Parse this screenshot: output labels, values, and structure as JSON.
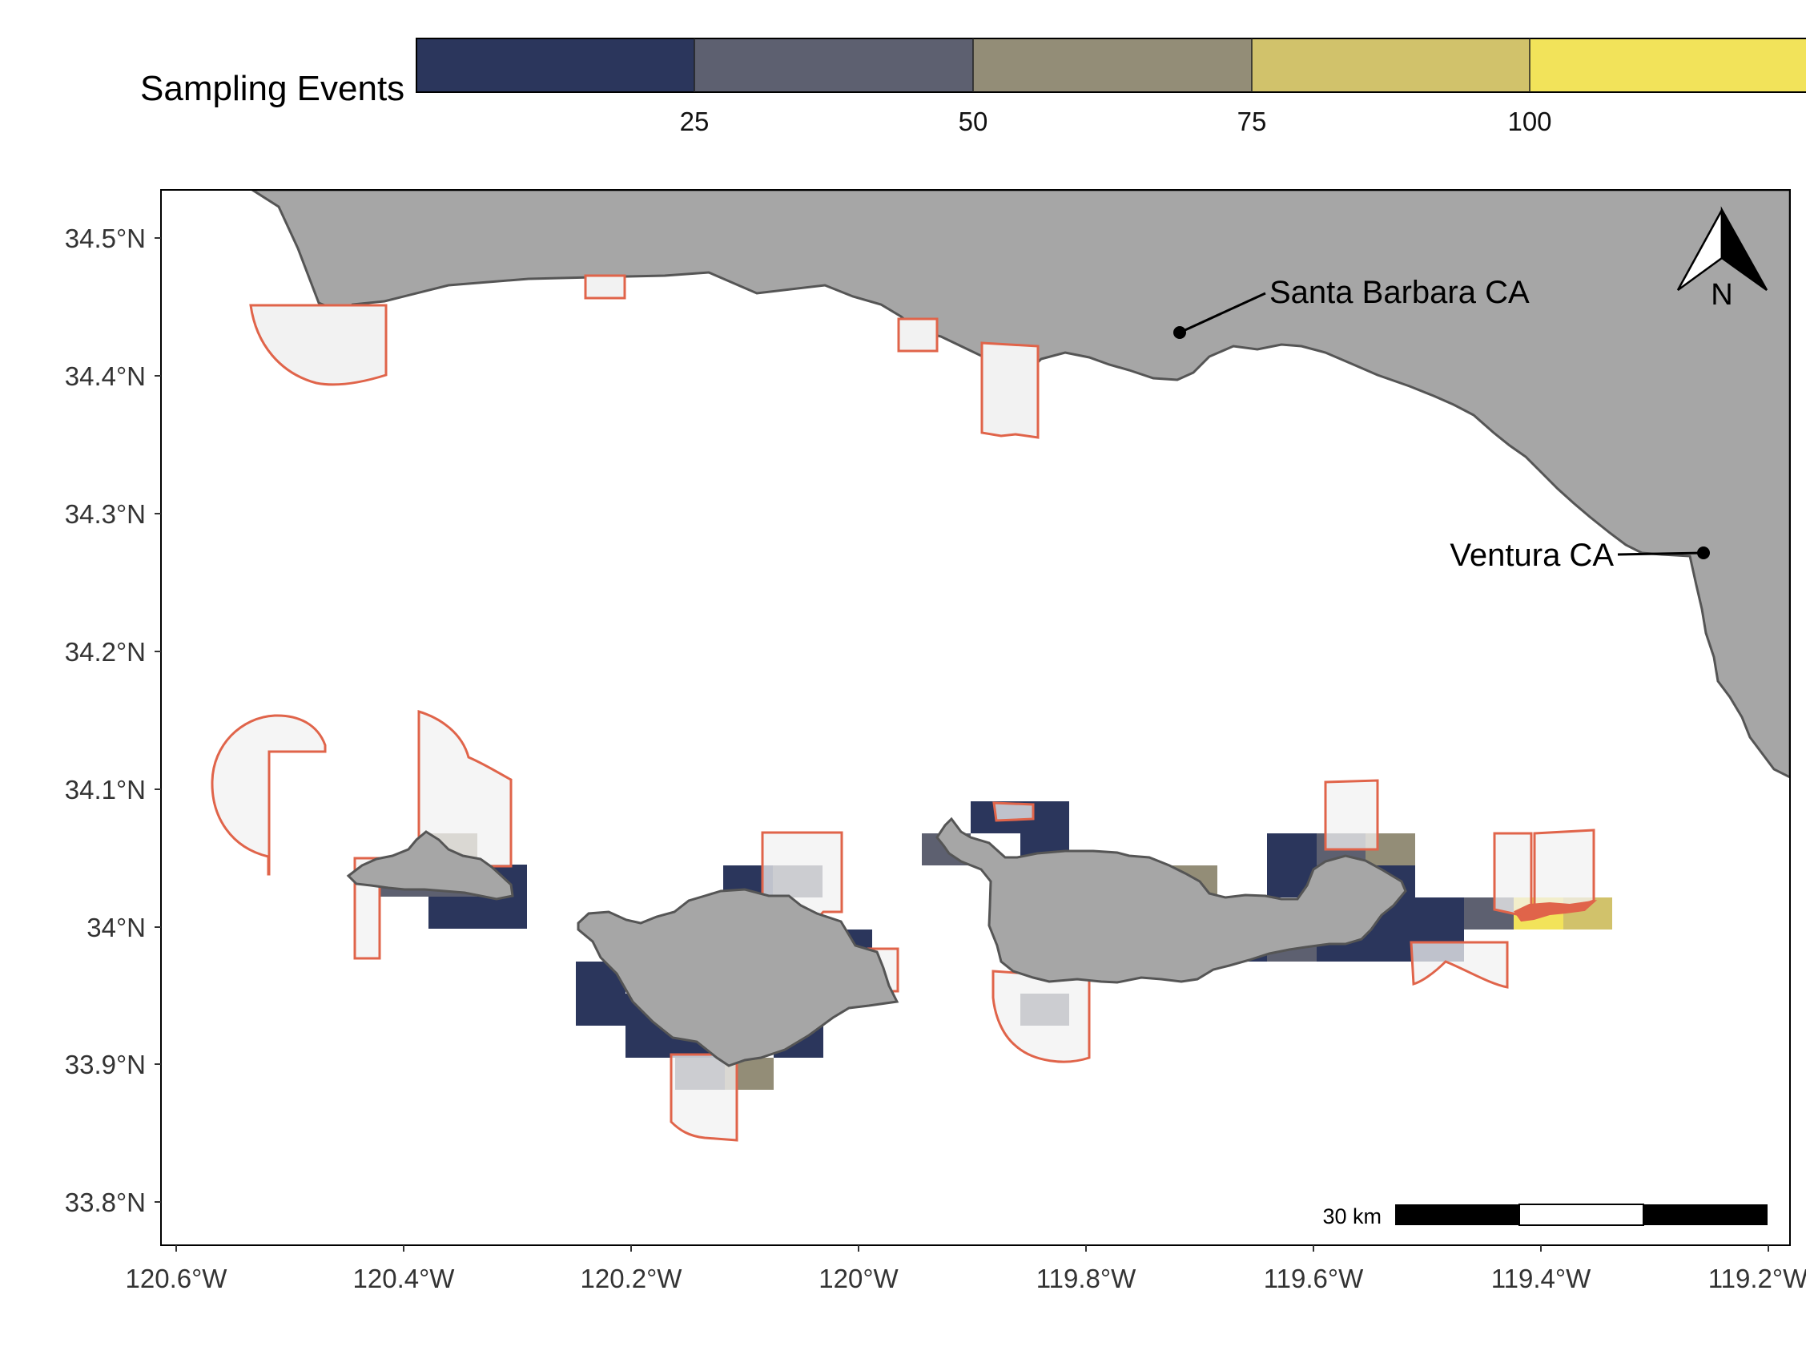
{
  "legend": {
    "title": "Sampling Events",
    "colors": [
      "#2b365c",
      "#5d6070",
      "#938d77",
      "#d1c26b",
      "#f2e35a"
    ],
    "ticks": [
      "25",
      "50",
      "75",
      "100"
    ]
  },
  "axes": {
    "lat_labels": [
      "34.5°N",
      "34.4°N",
      "34.3°N",
      "34.2°N",
      "34.1°N",
      "34°N",
      "33.9°N",
      "33.8°N"
    ],
    "lon_labels": [
      "120.6°W",
      "120.4°W",
      "120.2°W",
      "120°W",
      "119.8°W",
      "119.6°W",
      "119.4°W",
      "119.2°W"
    ]
  },
  "places": {
    "santa_barbara": "Santa Barbara CA",
    "ventura": "Ventura CA"
  },
  "scale_bar": {
    "label": "30 km"
  },
  "north_arrow": {
    "label": "N"
  },
  "colors": {
    "land": "#a6a6a6",
    "land_stroke": "#555555",
    "mpa_stroke": "#e0644a",
    "mpa_fill": "#f2f2f2"
  }
}
